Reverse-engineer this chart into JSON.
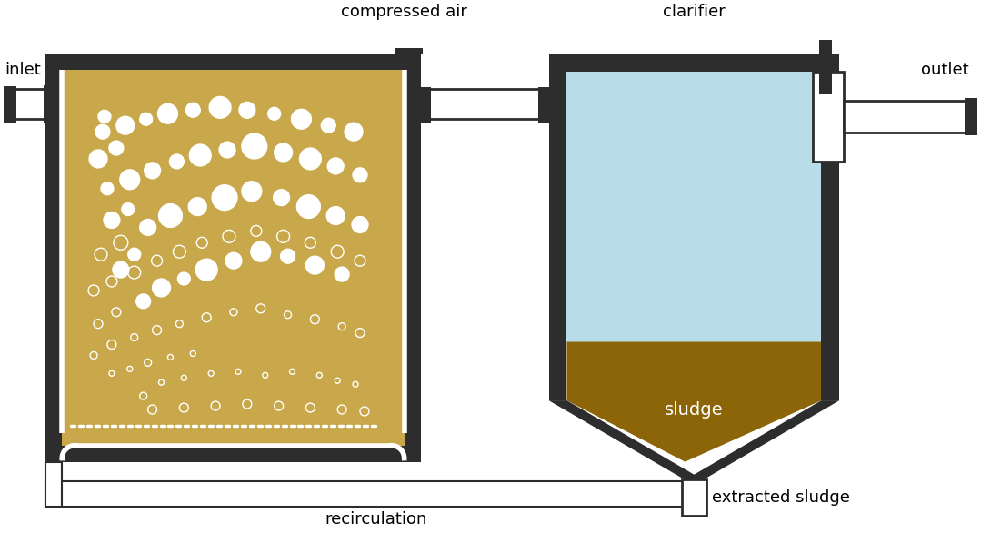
{
  "bg_color": "#ffffff",
  "dark_color": "#2d2d2d",
  "tank_fill_color": "#c8a84b",
  "clarifier_water_color": "#b8dce8",
  "sludge_color": "#8B6508",
  "arrow_brown": "#8B6508",
  "arrow_blue": "#1a5fa8",
  "label_inlet": "inlet",
  "label_outlet": "outlet",
  "label_compressed_air": "compressed air",
  "label_clarifier": "clarifier",
  "label_recirculation": "recirculation",
  "label_sludge": "sludge",
  "label_extracted_sludge": "extracted sludge",
  "bubbles": [
    [
      155,
      435,
      4,
      false
    ],
    [
      175,
      420,
      3,
      false
    ],
    [
      200,
      415,
      3,
      false
    ],
    [
      230,
      410,
      3,
      false
    ],
    [
      260,
      408,
      3,
      false
    ],
    [
      290,
      412,
      3,
      false
    ],
    [
      320,
      408,
      3,
      false
    ],
    [
      350,
      412,
      3,
      false
    ],
    [
      370,
      418,
      3,
      false
    ],
    [
      390,
      422,
      3,
      false
    ],
    [
      120,
      410,
      3,
      false
    ],
    [
      140,
      405,
      3,
      false
    ],
    [
      160,
      398,
      4,
      false
    ],
    [
      185,
      392,
      3,
      false
    ],
    [
      210,
      388,
      3,
      false
    ],
    [
      100,
      390,
      4,
      false
    ],
    [
      120,
      378,
      5,
      false
    ],
    [
      145,
      370,
      4,
      false
    ],
    [
      170,
      362,
      5,
      false
    ],
    [
      195,
      355,
      4,
      false
    ],
    [
      225,
      348,
      5,
      false
    ],
    [
      255,
      342,
      4,
      false
    ],
    [
      285,
      338,
      5,
      false
    ],
    [
      315,
      345,
      4,
      false
    ],
    [
      345,
      350,
      5,
      false
    ],
    [
      375,
      358,
      4,
      false
    ],
    [
      395,
      365,
      5,
      false
    ],
    [
      105,
      355,
      5,
      false
    ],
    [
      125,
      342,
      5,
      false
    ],
    [
      100,
      318,
      6,
      false
    ],
    [
      120,
      308,
      6,
      false
    ],
    [
      145,
      298,
      7,
      false
    ],
    [
      170,
      285,
      6,
      false
    ],
    [
      195,
      275,
      7,
      false
    ],
    [
      220,
      265,
      6,
      false
    ],
    [
      250,
      258,
      7,
      false
    ],
    [
      280,
      252,
      6,
      false
    ],
    [
      310,
      258,
      7,
      false
    ],
    [
      340,
      265,
      6,
      false
    ],
    [
      370,
      275,
      7,
      false
    ],
    [
      395,
      285,
      6,
      false
    ],
    [
      108,
      278,
      7,
      false
    ],
    [
      130,
      265,
      8,
      false
    ],
    [
      155,
      330,
      8,
      true
    ],
    [
      175,
      315,
      10,
      true
    ],
    [
      200,
      305,
      7,
      true
    ],
    [
      225,
      295,
      12,
      true
    ],
    [
      255,
      285,
      9,
      true
    ],
    [
      285,
      275,
      11,
      true
    ],
    [
      315,
      280,
      8,
      true
    ],
    [
      345,
      290,
      10,
      true
    ],
    [
      375,
      300,
      8,
      true
    ],
    [
      130,
      295,
      9,
      true
    ],
    [
      145,
      278,
      7,
      true
    ],
    [
      160,
      248,
      9,
      true
    ],
    [
      185,
      235,
      13,
      true
    ],
    [
      215,
      225,
      10,
      true
    ],
    [
      245,
      215,
      14,
      true
    ],
    [
      275,
      208,
      11,
      true
    ],
    [
      308,
      215,
      9,
      true
    ],
    [
      338,
      225,
      13,
      true
    ],
    [
      368,
      235,
      10,
      true
    ],
    [
      395,
      245,
      9,
      true
    ],
    [
      120,
      240,
      9,
      true
    ],
    [
      138,
      228,
      7,
      true
    ],
    [
      115,
      205,
      7,
      true
    ],
    [
      140,
      195,
      11,
      true
    ],
    [
      165,
      185,
      9,
      true
    ],
    [
      192,
      175,
      8,
      true
    ],
    [
      218,
      168,
      12,
      true
    ],
    [
      248,
      162,
      9,
      true
    ],
    [
      278,
      158,
      14,
      true
    ],
    [
      310,
      165,
      10,
      true
    ],
    [
      340,
      172,
      12,
      true
    ],
    [
      368,
      180,
      9,
      true
    ],
    [
      395,
      190,
      8,
      true
    ],
    [
      105,
      172,
      10,
      true
    ],
    [
      125,
      160,
      8,
      true
    ],
    [
      110,
      142,
      8,
      true
    ],
    [
      135,
      135,
      10,
      true
    ],
    [
      158,
      128,
      7,
      true
    ],
    [
      182,
      122,
      11,
      true
    ],
    [
      210,
      118,
      8,
      true
    ],
    [
      240,
      115,
      12,
      true
    ],
    [
      270,
      118,
      9,
      true
    ],
    [
      300,
      122,
      7,
      true
    ],
    [
      330,
      128,
      11,
      true
    ],
    [
      360,
      135,
      8,
      true
    ],
    [
      388,
      142,
      10,
      true
    ],
    [
      112,
      125,
      7,
      true
    ],
    [
      165,
      450,
      5,
      false
    ],
    [
      200,
      448,
      5,
      false
    ],
    [
      235,
      446,
      5,
      false
    ],
    [
      270,
      444,
      5,
      false
    ],
    [
      305,
      446,
      5,
      false
    ],
    [
      340,
      448,
      5,
      false
    ],
    [
      375,
      450,
      5,
      false
    ],
    [
      400,
      452,
      5,
      false
    ]
  ]
}
